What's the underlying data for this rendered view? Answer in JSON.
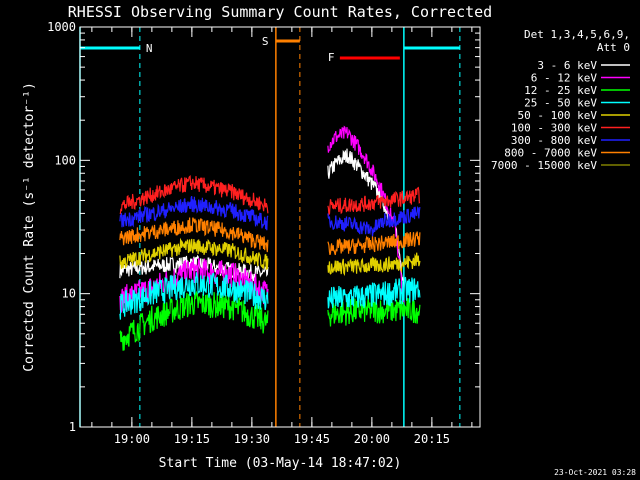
{
  "chart_data": {
    "type": "line",
    "title": "RHESSI Observing Summary Count Rates, Corrected",
    "xlabel": "Start Time (03-May-14 18:47:02)",
    "ylabel": "Corrected Count Rate (s⁻¹ detector⁻¹)",
    "footer": "23-Oct-2021 03:28",
    "y_scale": "log",
    "ylim": [
      1,
      1000
    ],
    "xlim": [
      "18:47:02",
      "20:27:02"
    ],
    "x_ticks": [
      "19:00",
      "19:15",
      "19:30",
      "19:45",
      "20:00",
      "20:15"
    ],
    "y_ticks": [
      "1",
      "10",
      "100",
      "1000"
    ],
    "legend": {
      "position": "right",
      "header": [
        "Det 1,3,4,5,6,9,",
        "Att 0"
      ],
      "entries": [
        {
          "label": "3 - 6 keV",
          "color": "#ffffff"
        },
        {
          "label": "6 - 12 keV",
          "color": "#ff00ff"
        },
        {
          "label": "12 - 25 keV",
          "color": "#00ff00"
        },
        {
          "label": "25 - 50 keV",
          "color": "#00ffff"
        },
        {
          "label": "50 - 100 keV",
          "color": "#e0d000"
        },
        {
          "label": "100 - 300 keV",
          "color": "#ff2020"
        },
        {
          "label": "300 - 800 keV",
          "color": "#2020ff"
        },
        {
          "label": "800 - 7000 keV",
          "color": "#ff8000"
        },
        {
          "label": "7000 - 15000 keV",
          "color": "#808000"
        }
      ]
    },
    "data_gap": [
      "19:36",
      "19:49"
    ],
    "series": [
      {
        "name": "3 - 6 keV",
        "color": "#ffffff",
        "segments": [
          {
            "t": [
              "18:57",
              "19:05",
              "19:15",
              "19:25",
              "19:34"
            ],
            "v": [
              15,
              16,
              17,
              15,
              14
            ]
          },
          {
            "t": [
              "19:49",
              "19:51",
              "19:54",
              "19:58",
              "20:02",
              "20:06",
              "20:08"
            ],
            "v": [
              80,
              95,
              110,
              80,
              55,
              30,
              12
            ]
          }
        ]
      },
      {
        "name": "6 - 12 keV",
        "color": "#ff00ff",
        "segments": [
          {
            "t": [
              "18:57",
              "19:05",
              "19:15",
              "19:25",
              "19:34"
            ],
            "v": [
              9,
              11,
              15,
              14,
              10
            ]
          },
          {
            "t": [
              "19:49",
              "19:51",
              "19:54",
              "19:58",
              "20:02",
              "20:06",
              "20:08"
            ],
            "v": [
              130,
              150,
              160,
              110,
              65,
              30,
              8
            ]
          }
        ]
      },
      {
        "name": "12 - 25 keV",
        "color": "#00ff00",
        "segments": [
          {
            "t": [
              "18:57",
              "19:05",
              "19:15",
              "19:25",
              "19:34"
            ],
            "v": [
              4.5,
              6.5,
              8.5,
              8,
              6
            ]
          },
          {
            "t": [
              "19:49",
              "19:58",
              "20:08",
              "20:12"
            ],
            "v": [
              7,
              7.5,
              7.5,
              7.5
            ]
          }
        ]
      },
      {
        "name": "25 - 50 keV",
        "color": "#00ffff",
        "segments": [
          {
            "t": [
              "18:57",
              "19:05",
              "19:15",
              "19:25",
              "19:34"
            ],
            "v": [
              8,
              10,
              12,
              11,
              9
            ]
          },
          {
            "t": [
              "19:49",
              "19:58",
              "20:08",
              "20:12"
            ],
            "v": [
              9,
              9.5,
              10.5,
              11
            ]
          }
        ]
      },
      {
        "name": "50 - 100 keV",
        "color": "#e0d000",
        "segments": [
          {
            "t": [
              "18:57",
              "19:05",
              "19:15",
              "19:25",
              "19:34"
            ],
            "v": [
              17,
              20,
              23,
              21,
              17
            ]
          },
          {
            "t": [
              "19:49",
              "19:58",
              "20:08",
              "20:12"
            ],
            "v": [
              16,
              16,
              17,
              18
            ]
          }
        ]
      },
      {
        "name": "100 - 300 keV",
        "color": "#ff2020",
        "segments": [
          {
            "t": [
              "18:57",
              "19:05",
              "19:15",
              "19:25",
              "19:34"
            ],
            "v": [
              45,
              55,
              68,
              58,
              45
            ]
          },
          {
            "t": [
              "19:49",
              "19:58",
              "20:08",
              "20:12"
            ],
            "v": [
              45,
              47,
              52,
              55
            ]
          }
        ]
      },
      {
        "name": "300 - 800 keV",
        "color": "#2020ff",
        "segments": [
          {
            "t": [
              "18:57",
              "19:05",
              "19:15",
              "19:25",
              "19:34"
            ],
            "v": [
              35,
              40,
              47,
              42,
              34
            ]
          },
          {
            "t": [
              "19:49",
              "19:55",
              "20:00",
              "20:03",
              "20:08",
              "20:12"
            ],
            "v": [
              35,
              33,
              30,
              35,
              38,
              40
            ]
          }
        ]
      },
      {
        "name": "800 - 7000 keV",
        "color": "#ff8000",
        "segments": [
          {
            "t": [
              "18:57",
              "19:05",
              "19:15",
              "19:25",
              "19:34"
            ],
            "v": [
              26,
              29,
              33,
              29,
              23
            ]
          },
          {
            "t": [
              "19:49",
              "19:58",
              "20:08",
              "20:12"
            ],
            "v": [
              22,
              23,
              25,
              26
            ]
          }
        ]
      }
    ],
    "annotations": [
      {
        "label": "N",
        "kind": "night",
        "color": "#00ffff",
        "start": "18:47:02",
        "end": "19:02"
      },
      {
        "label": "",
        "kind": "night",
        "color": "#00ffff",
        "start": "20:08",
        "end": "20:22"
      },
      {
        "label": "S",
        "kind": "saa",
        "color": "#ff8000",
        "start": "19:36",
        "end": "19:42"
      },
      {
        "label": "F",
        "kind": "flare",
        "color": "#ff0000",
        "start": "19:52",
        "end": "20:07"
      }
    ]
  }
}
